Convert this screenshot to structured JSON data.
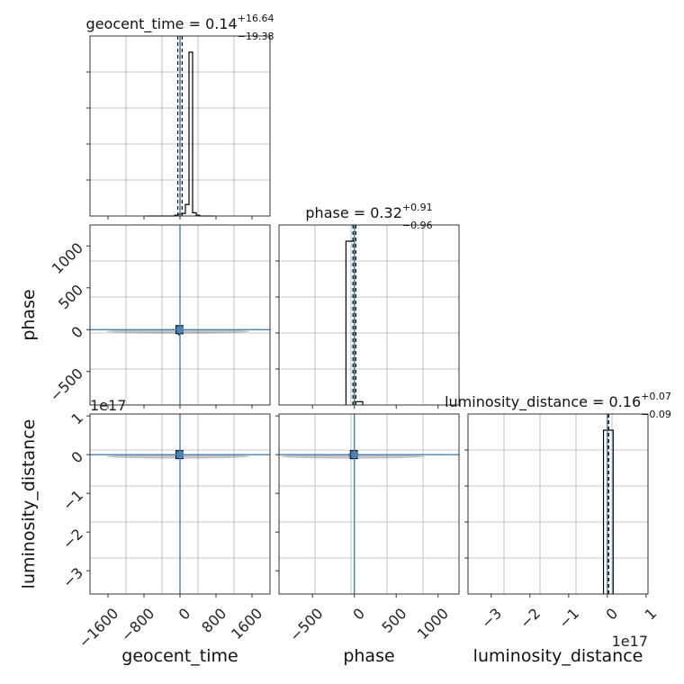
{
  "chart_data": [
    {
      "type": "histogram",
      "panel": "geocent_time",
      "title": {
        "param": "geocent_time",
        "median": "0.14",
        "plus": "+16.64",
        "minus": "−19.38"
      },
      "xlim": [
        -2000,
        2000
      ],
      "bins": {
        "edges": [
          -760,
          -680,
          -600,
          -520,
          -440,
          -360,
          -280,
          -200,
          -120,
          -40,
          40,
          120,
          200,
          280,
          360,
          440,
          520,
          600,
          680,
          760
        ],
        "heights": [
          0,
          0,
          0,
          0,
          0,
          0,
          0,
          0,
          0.005,
          0.012,
          0.015,
          0.07,
          1.0,
          0.02,
          0.005,
          0,
          0,
          0,
          0
        ]
      },
      "median": 0.14,
      "quantile_lines": [
        -19.24,
        0.14,
        16.78
      ],
      "grid": true
    },
    {
      "type": "histogram",
      "panel": "phase",
      "title": {
        "param": "phase",
        "median": "0.32",
        "plus": "+0.91",
        "minus": "−0.96"
      },
      "xlim": [
        -900,
        1250
      ],
      "bins": {
        "edges": [
          -100,
          0,
          100
        ],
        "heights": [
          1.0,
          0.02
        ]
      },
      "median": 0.32,
      "quantile_lines": [
        -0.64,
        0.32,
        1.23
      ],
      "grid": true
    },
    {
      "type": "histogram",
      "panel": "luminosity_distance",
      "title": {
        "param": "luminosity_distance",
        "median": "0.16",
        "plus": "+0.07",
        "minus": "−0.09"
      },
      "xlim": [
        -3.6e+17,
        1.05e+17
      ],
      "bins": {
        "edges": [
          -1e+16,
          0,
          1.5e+16
        ],
        "heights": [
          1.0,
          1.0
        ]
      },
      "median": 0.16,
      "quantile_lines": [
        7000000000000000.0,
        0.16,
        0.23
      ],
      "grid": true
    },
    {
      "type": "scatter",
      "panel": "phase_vs_geocent_time",
      "xlim": [
        -2000,
        2000
      ],
      "ylim": [
        -900,
        1250
      ],
      "truth": {
        "x": 0,
        "y": 0
      },
      "points": [
        [
          0,
          0
        ],
        [
          -60,
          -20
        ],
        [
          40,
          20
        ],
        [
          -20,
          -60
        ],
        [
          20,
          30
        ]
      ]
    },
    {
      "type": "scatter",
      "panel": "luminosity_distance_vs_geocent_time",
      "xlim": [
        -2000,
        2000
      ],
      "ylim": [
        -3.6e+17,
        1.05e+17
      ],
      "truth": {
        "x": 0,
        "y": 0
      },
      "points": [
        [
          0,
          0
        ],
        [
          -60,
          2000000000000000.0
        ],
        [
          40,
          -2000000000000000.0
        ],
        [
          20,
          1000000000000000.0
        ]
      ]
    },
    {
      "type": "scatter",
      "panel": "luminosity_distance_vs_phase",
      "xlim": [
        -900,
        1250
      ],
      "ylim": [
        -3.6e+17,
        1.05e+17
      ],
      "truth": {
        "x": 0,
        "y": 0
      },
      "points": [
        [
          -60,
          0
        ],
        [
          -20,
          2000000000000000.0
        ],
        [
          20,
          -2000000000000000.0
        ],
        [
          0,
          1000000000000000.0
        ]
      ]
    }
  ],
  "axes": {
    "geocent_time": {
      "label": "geocent_time",
      "ticks": [
        -1600,
        -800,
        0,
        800,
        1600
      ],
      "tick_labels": [
        "−1600",
        "−800",
        "0",
        "800",
        "1600"
      ]
    },
    "phase": {
      "label": "phase",
      "ticks": [
        -500,
        0,
        500,
        1000
      ],
      "tick_labels": [
        "−500",
        "0",
        "500",
        "1000"
      ]
    },
    "luminosity_distance": {
      "label": "luminosity_distance",
      "ticks": [
        -3e+17,
        -2e+17,
        -1e+17,
        0,
        1e+17
      ],
      "tick_labels": [
        "−3",
        "−2",
        "−1",
        "0",
        "1"
      ],
      "offset_label": "1e17"
    }
  },
  "colors": {
    "truth": "#4682b4",
    "hist": "#000000",
    "grid": "#b0b0b0",
    "quantile": "#000000"
  }
}
